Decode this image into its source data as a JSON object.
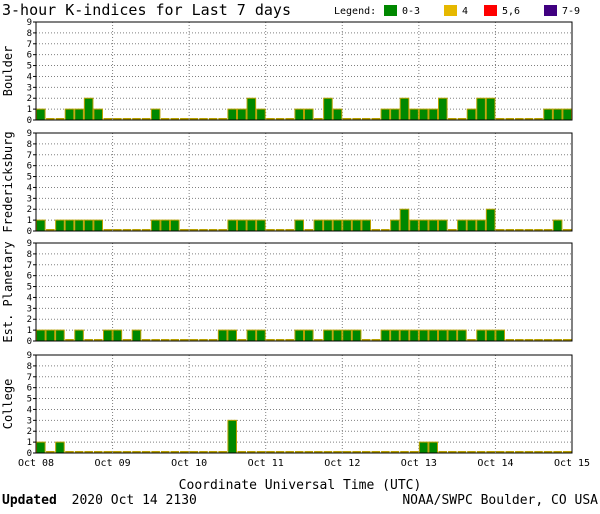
{
  "title": "3-hour K-indices for Last 7 days",
  "legend": {
    "label": "Legend:",
    "items": [
      {
        "label": "0-3",
        "color": "#008800"
      },
      {
        "label": "4",
        "color": "#e6b800"
      },
      {
        "label": "5,6",
        "color": "#ff0000"
      },
      {
        "label": "7-9",
        "color": "#400080"
      }
    ]
  },
  "x_axis": {
    "label": "Coordinate Universal Time (UTC)",
    "ticks": [
      "Oct 08",
      "Oct 09",
      "Oct 10",
      "Oct 11",
      "Oct 12",
      "Oct 13",
      "Oct 14",
      "Oct 15"
    ]
  },
  "y_ticks": [
    "0",
    "1",
    "2",
    "3",
    "4",
    "5",
    "6",
    "7",
    "8",
    "9"
  ],
  "footer": {
    "updated_bold": "Updated",
    "updated_rest": "2020 Oct 14 2130",
    "credit": "NOAA/SWPC Boulder, CO USA"
  },
  "colors": {
    "bar_green": "#008800",
    "bar_edge": "#b8a000",
    "grid": "#808080"
  },
  "chart_data": [
    {
      "type": "bar",
      "name": "Boulder",
      "ylim": [
        0,
        9
      ],
      "x_start": "2020-10-08 00:00 UTC",
      "interval_hours": 3,
      "values": [
        1,
        0,
        0,
        1,
        1,
        2,
        1,
        0,
        0,
        0,
        0,
        0,
        1,
        0,
        0,
        0,
        0,
        0,
        0,
        0,
        1,
        1,
        2,
        1,
        0,
        0,
        0,
        1,
        1,
        0,
        2,
        1,
        0,
        0,
        0,
        0,
        1,
        1,
        2,
        1,
        1,
        1,
        2,
        0,
        0,
        1,
        2,
        2,
        0,
        0,
        0,
        0,
        0,
        1,
        1,
        1
      ]
    },
    {
      "type": "bar",
      "name": "Fredericksburg",
      "ylim": [
        0,
        9
      ],
      "x_start": "2020-10-08 00:00 UTC",
      "interval_hours": 3,
      "values": [
        1,
        0,
        1,
        1,
        1,
        1,
        1,
        0,
        0,
        0,
        0,
        0,
        1,
        1,
        1,
        0,
        0,
        0,
        0,
        0,
        1,
        1,
        1,
        1,
        0,
        0,
        0,
        1,
        0,
        1,
        1,
        1,
        1,
        1,
        1,
        0,
        0,
        1,
        2,
        1,
        1,
        1,
        1,
        0,
        1,
        1,
        1,
        2,
        0,
        0,
        0,
        0,
        0,
        0,
        1,
        0
      ]
    },
    {
      "type": "bar",
      "name": "Est. Planetary",
      "ylim": [
        0,
        9
      ],
      "x_start": "2020-10-08 00:00 UTC",
      "interval_hours": 3,
      "values": [
        1,
        1,
        1,
        0,
        1,
        0,
        0,
        1,
        1,
        0,
        1,
        0,
        0,
        0,
        0,
        0,
        0,
        0,
        0,
        1,
        1,
        0,
        1,
        1,
        0,
        0,
        0,
        1,
        1,
        0,
        1,
        1,
        1,
        1,
        0,
        0,
        1,
        1,
        1,
        1,
        1,
        1,
        1,
        1,
        1,
        0,
        1,
        1,
        1,
        0,
        0,
        0,
        0,
        0,
        0,
        0
      ]
    },
    {
      "type": "bar",
      "name": "College",
      "ylim": [
        0,
        9
      ],
      "x_start": "2020-10-08 00:00 UTC",
      "interval_hours": 3,
      "values": [
        1,
        0,
        1,
        0,
        0,
        0,
        0,
        0,
        0,
        0,
        0,
        0,
        0,
        0,
        0,
        0,
        0,
        0,
        0,
        0,
        3,
        0,
        0,
        0,
        0,
        0,
        0,
        0,
        0,
        0,
        0,
        0,
        0,
        0,
        0,
        0,
        0,
        0,
        0,
        0,
        1,
        1,
        0,
        0,
        0,
        0,
        0,
        0,
        0,
        0,
        0,
        0,
        0,
        0,
        0,
        0
      ]
    }
  ]
}
